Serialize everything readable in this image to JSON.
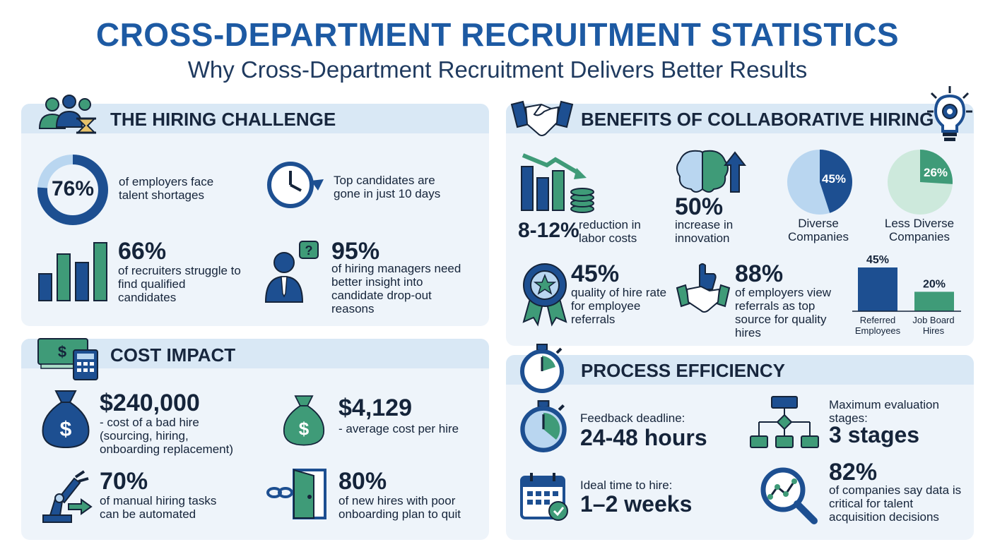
{
  "header": {
    "title": "CROSS-DEPARTMENT RECRUITMENT STATISTICS",
    "subtitle": "Why Cross-Department Recruitment Delivers Better Results"
  },
  "colors": {
    "navy": "#1d4f91",
    "green": "#3f9b78",
    "light_green": "#a9dcc6",
    "light_blue": "#b9d6f0",
    "panel": "#eef4fa",
    "panel_header": "#d9e8f5",
    "title": "#1d5aa3"
  },
  "hiring_challenge": {
    "title": "THE HIRING CHALLENGE",
    "icon": "people-hourglass-icon",
    "donut": {
      "value": 76,
      "label": "76%"
    },
    "shortage_text": "of employers face talent shortages",
    "clock_text": "Top candidates are gone in just 10 days",
    "recruiters_value": "66%",
    "recruiters_text": "of recruiters struggle to find qualified candidates",
    "managers_value": "95%",
    "managers_text": "of hiring managers need better insight into candidate drop-out reasons"
  },
  "cost_impact": {
    "title": "COST IMPACT",
    "icon": "money-calculator-icon",
    "bad_hire_value": "$240,000",
    "bad_hire_text": "- cost of a bad hire (sourcing, hiring, onboarding replacement)",
    "per_hire_value": "$4,129",
    "per_hire_text": "- average cost per hire",
    "automation_value": "70%",
    "automation_text": "of manual hiring tasks can be automated",
    "onboarding_value": "80%",
    "onboarding_text": "of new hires with poor onboarding plan to quit"
  },
  "benefits": {
    "title": "BENEFITS OF COLLABORATIVE HIRING",
    "icon": "handshake-icon",
    "bulb_icon": "lightbulb-gear-icon",
    "labor_value": "8-12%",
    "labor_text": "reduction in labor costs",
    "innovation_value": "50%",
    "innovation_text": "increase in innovation",
    "quality_value": "45%",
    "quality_text": "quality of hire rate for employee referrals",
    "referrals_value": "88%",
    "referrals_text": "of employers view referrals as top source for quality hires"
  },
  "chart_data": [
    {
      "type": "pie",
      "categories": [
        "Diverse Companies"
      ],
      "values": [
        45
      ],
      "labels": [
        "45%"
      ],
      "title": ""
    },
    {
      "type": "pie",
      "categories": [
        "Less Diverse Companies"
      ],
      "values": [
        26
      ],
      "labels": [
        "26%"
      ],
      "title": ""
    },
    {
      "type": "bar",
      "categories": [
        "Referred Employees",
        "Job Board Hires"
      ],
      "values": [
        45,
        20
      ],
      "labels": [
        "45%",
        "20%"
      ],
      "title": "",
      "ylim": [
        0,
        45
      ]
    }
  ],
  "process": {
    "title": "PROCESS EFFICIENCY",
    "icon": "stopwatch-icon",
    "feedback_label": "Feedback deadline:",
    "feedback_value": "24-48 hours",
    "stages_label": "Maximum evaluation stages:",
    "stages_value": "3 stages",
    "time_label": "Ideal time to hire:",
    "time_value": "1–2 weeks",
    "data_value": "82%",
    "data_text": "of companies say data is critical for talent acquisition decisions"
  }
}
